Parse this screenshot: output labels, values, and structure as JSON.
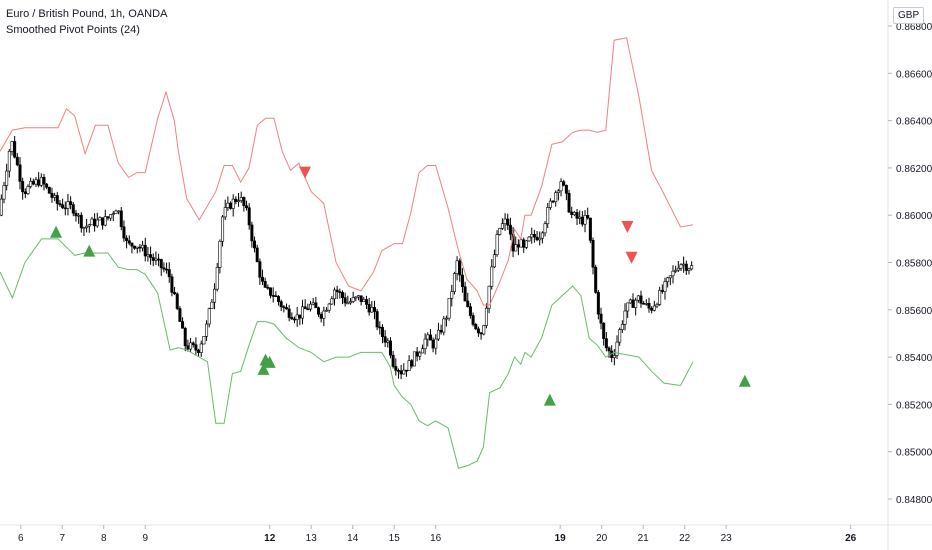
{
  "header": {
    "symbol_title": "Euro / British Pound, 1h, OANDA",
    "indicator_label": "Smoothed Pivot Points (24)",
    "currency_button": "GBP"
  },
  "colors": {
    "candle": "#000000",
    "upper_band": "#f08080",
    "lower_band": "#66bb6a",
    "arrow_down": "#ef5350",
    "arrow_up": "#43a047",
    "axis_text": "#131722",
    "axis_line": "#e0e3eb"
  },
  "chart_data": {
    "type": "line",
    "subtype": "candlestick with indicator bands and pivot markers",
    "x_axis": {
      "ticks": [
        "6",
        "7",
        "8",
        "9",
        "12",
        "13",
        "14",
        "15",
        "16",
        "19",
        "20",
        "21",
        "22",
        "23",
        "26"
      ],
      "bold_ticks": [
        "12",
        "19",
        "26"
      ],
      "range": [
        5.5,
        26.9
      ]
    },
    "y_axis": {
      "ticks": [
        "0.84800",
        "0.85000",
        "0.85200",
        "0.85400",
        "0.85600",
        "0.85800",
        "0.86000",
        "0.86200",
        "0.86400",
        "0.86600",
        "0.86800"
      ],
      "range": [
        0.8469,
        0.8691
      ],
      "position": "right"
    },
    "series": [
      {
        "key": "price",
        "points": [
          [
            5.5,
            0.86
          ],
          [
            5.8,
            0.8632
          ],
          [
            6.1,
            0.861
          ],
          [
            6.5,
            0.8615
          ],
          [
            6.9,
            0.8605
          ],
          [
            7.3,
            0.8603
          ],
          [
            7.55,
            0.8595
          ],
          [
            7.8,
            0.8597
          ],
          [
            8.1,
            0.8598
          ],
          [
            8.35,
            0.8604
          ],
          [
            8.6,
            0.8587
          ],
          [
            8.8,
            0.8588
          ],
          [
            9.0,
            0.8585
          ],
          [
            9.3,
            0.858
          ],
          [
            9.6,
            0.8575
          ],
          [
            9.8,
            0.856
          ],
          [
            10.0,
            0.8545
          ],
          [
            10.3,
            0.8543
          ],
          [
            10.5,
            0.8552
          ],
          [
            10.7,
            0.857
          ],
          [
            10.9,
            0.86
          ],
          [
            11.1,
            0.8605
          ],
          [
            11.3,
            0.8608
          ],
          [
            11.5,
            0.86
          ],
          [
            11.7,
            0.8582
          ],
          [
            11.9,
            0.8568
          ],
          [
            12.1,
            0.8567
          ],
          [
            12.4,
            0.856
          ],
          [
            12.7,
            0.8557
          ],
          [
            13.0,
            0.8562
          ],
          [
            13.3,
            0.8558
          ],
          [
            13.6,
            0.8569
          ],
          [
            13.9,
            0.8563
          ],
          [
            14.2,
            0.8565
          ],
          [
            14.5,
            0.856
          ],
          [
            14.7,
            0.855
          ],
          [
            14.9,
            0.8546
          ],
          [
            15.0,
            0.8538
          ],
          [
            15.2,
            0.8534
          ],
          [
            15.4,
            0.8537
          ],
          [
            15.6,
            0.8542
          ],
          [
            15.8,
            0.8548
          ],
          [
            16.0,
            0.8545
          ],
          [
            16.3,
            0.8558
          ],
          [
            16.55,
            0.858
          ],
          [
            16.75,
            0.8562
          ],
          [
            17.0,
            0.8553
          ],
          [
            17.15,
            0.855
          ],
          [
            17.3,
            0.8568
          ],
          [
            17.55,
            0.8594
          ],
          [
            17.75,
            0.8598
          ],
          [
            17.9,
            0.8585
          ],
          [
            18.05,
            0.8589
          ],
          [
            18.15,
            0.8585
          ],
          [
            18.3,
            0.859
          ],
          [
            18.55,
            0.8592
          ],
          [
            18.8,
            0.8605
          ],
          [
            19.05,
            0.8615
          ],
          [
            19.3,
            0.86
          ],
          [
            19.5,
            0.8598
          ],
          [
            19.7,
            0.8598
          ],
          [
            19.9,
            0.8565
          ],
          [
            20.1,
            0.8545
          ],
          [
            20.3,
            0.854
          ],
          [
            20.6,
            0.856
          ],
          [
            20.9,
            0.8565
          ],
          [
            21.2,
            0.856
          ],
          [
            21.5,
            0.8568
          ],
          [
            21.9,
            0.858
          ],
          [
            22.2,
            0.8578
          ]
        ]
      },
      {
        "key": "upper_band",
        "points": [
          [
            5.5,
            0.8627
          ],
          [
            5.8,
            0.8636
          ],
          [
            6.1,
            0.8637
          ],
          [
            6.5,
            0.8637
          ],
          [
            6.9,
            0.8637
          ],
          [
            7.1,
            0.8645
          ],
          [
            7.3,
            0.8642
          ],
          [
            7.55,
            0.8626
          ],
          [
            7.8,
            0.8638
          ],
          [
            8.1,
            0.8638
          ],
          [
            8.35,
            0.8622
          ],
          [
            8.6,
            0.8616
          ],
          [
            8.8,
            0.8618
          ],
          [
            9.0,
            0.8618
          ],
          [
            9.3,
            0.8641
          ],
          [
            9.5,
            0.8652
          ],
          [
            9.7,
            0.864
          ],
          [
            9.8,
            0.8627
          ],
          [
            10.0,
            0.8607
          ],
          [
            10.3,
            0.8598
          ],
          [
            10.7,
            0.861
          ],
          [
            10.9,
            0.8621
          ],
          [
            11.1,
            0.8621
          ],
          [
            11.3,
            0.8614
          ],
          [
            11.5,
            0.862
          ],
          [
            11.7,
            0.8638
          ],
          [
            11.9,
            0.8641
          ],
          [
            12.1,
            0.8641
          ],
          [
            12.3,
            0.8627
          ],
          [
            12.5,
            0.8619
          ],
          [
            12.7,
            0.8622
          ],
          [
            13.0,
            0.861
          ],
          [
            13.3,
            0.8605
          ],
          [
            13.6,
            0.858
          ],
          [
            13.9,
            0.857
          ],
          [
            14.2,
            0.8568
          ],
          [
            14.5,
            0.8576
          ],
          [
            14.7,
            0.8585
          ],
          [
            14.9,
            0.8587
          ],
          [
            15.0,
            0.8588
          ],
          [
            15.2,
            0.8588
          ],
          [
            15.4,
            0.8601
          ],
          [
            15.6,
            0.8618
          ],
          [
            15.8,
            0.8621
          ],
          [
            16.0,
            0.8621
          ],
          [
            16.3,
            0.8603
          ],
          [
            16.55,
            0.8585
          ],
          [
            16.75,
            0.8573
          ],
          [
            17.0,
            0.8568
          ],
          [
            17.15,
            0.8562
          ],
          [
            17.3,
            0.8562
          ],
          [
            17.55,
            0.8572
          ],
          [
            17.75,
            0.8581
          ],
          [
            17.9,
            0.8594
          ],
          [
            18.05,
            0.859
          ],
          [
            18.15,
            0.86
          ],
          [
            18.3,
            0.86
          ],
          [
            18.55,
            0.8612
          ],
          [
            18.8,
            0.863
          ],
          [
            19.05,
            0.8631
          ],
          [
            19.3,
            0.8635
          ],
          [
            19.5,
            0.8636
          ],
          [
            19.7,
            0.8636
          ],
          [
            19.9,
            0.8635
          ],
          [
            20.1,
            0.8636
          ],
          [
            20.3,
            0.8674
          ],
          [
            20.6,
            0.8675
          ],
          [
            20.9,
            0.865
          ],
          [
            21.2,
            0.8619
          ],
          [
            21.5,
            0.8609
          ],
          [
            21.9,
            0.8595
          ],
          [
            22.2,
            0.8596
          ]
        ]
      },
      {
        "key": "lower_band",
        "points": [
          [
            5.5,
            0.8576
          ],
          [
            5.8,
            0.8565
          ],
          [
            6.1,
            0.858
          ],
          [
            6.5,
            0.859
          ],
          [
            6.9,
            0.859
          ],
          [
            7.3,
            0.8583
          ],
          [
            7.55,
            0.8584
          ],
          [
            7.8,
            0.8584
          ],
          [
            8.1,
            0.8584
          ],
          [
            8.35,
            0.8578
          ],
          [
            8.6,
            0.8577
          ],
          [
            8.8,
            0.8577
          ],
          [
            9.0,
            0.8575
          ],
          [
            9.3,
            0.8567
          ],
          [
            9.6,
            0.8543
          ],
          [
            9.8,
            0.8544
          ],
          [
            10.0,
            0.8543
          ],
          [
            10.3,
            0.854
          ],
          [
            10.5,
            0.8538
          ],
          [
            10.7,
            0.8512
          ],
          [
            10.9,
            0.8512
          ],
          [
            11.1,
            0.8533
          ],
          [
            11.3,
            0.8534
          ],
          [
            11.5,
            0.8545
          ],
          [
            11.7,
            0.8555
          ],
          [
            11.9,
            0.8555
          ],
          [
            12.1,
            0.8554
          ],
          [
            12.4,
            0.8548
          ],
          [
            12.7,
            0.8544
          ],
          [
            13.0,
            0.8542
          ],
          [
            13.3,
            0.8538
          ],
          [
            13.6,
            0.854
          ],
          [
            13.9,
            0.854
          ],
          [
            14.2,
            0.8542
          ],
          [
            14.5,
            0.8542
          ],
          [
            14.7,
            0.8542
          ],
          [
            14.9,
            0.8536
          ],
          [
            15.0,
            0.8528
          ],
          [
            15.2,
            0.8523
          ],
          [
            15.4,
            0.852
          ],
          [
            15.6,
            0.8513
          ],
          [
            15.8,
            0.8511
          ],
          [
            16.0,
            0.8513
          ],
          [
            16.3,
            0.851
          ],
          [
            16.55,
            0.8493
          ],
          [
            16.75,
            0.8494
          ],
          [
            17.0,
            0.8496
          ],
          [
            17.15,
            0.8502
          ],
          [
            17.3,
            0.8525
          ],
          [
            17.55,
            0.8527
          ],
          [
            17.75,
            0.8533
          ],
          [
            17.9,
            0.854
          ],
          [
            18.05,
            0.8537
          ],
          [
            18.15,
            0.8542
          ],
          [
            18.3,
            0.854
          ],
          [
            18.55,
            0.8548
          ],
          [
            18.8,
            0.8562
          ],
          [
            19.05,
            0.8566
          ],
          [
            19.3,
            0.857
          ],
          [
            19.5,
            0.8566
          ],
          [
            19.7,
            0.8548
          ],
          [
            19.9,
            0.8545
          ],
          [
            20.1,
            0.854
          ],
          [
            20.3,
            0.8542
          ],
          [
            20.6,
            0.8541
          ],
          [
            20.9,
            0.854
          ],
          [
            21.2,
            0.8534
          ],
          [
            21.5,
            0.8529
          ],
          [
            21.9,
            0.8528
          ],
          [
            22.2,
            0.8538
          ]
        ]
      }
    ],
    "markers": [
      {
        "type": "pivot-low",
        "x": 6.85,
        "y": 0.8593
      },
      {
        "type": "pivot-low",
        "x": 7.65,
        "y": 0.8585
      },
      {
        "type": "pivot-low",
        "x": 11.9,
        "y": 0.8539
      },
      {
        "type": "pivot-low",
        "x": 11.85,
        "y": 0.8535
      },
      {
        "type": "pivot-low",
        "x": 12.0,
        "y": 0.8538
      },
      {
        "type": "pivot-high",
        "x": 12.85,
        "y": 0.8618
      },
      {
        "type": "pivot-low",
        "x": 18.75,
        "y": 0.8522
      },
      {
        "type": "pivot-high",
        "x": 20.62,
        "y": 0.8595
      },
      {
        "type": "pivot-high",
        "x": 20.72,
        "y": 0.8582
      },
      {
        "type": "pivot-low",
        "x": 23.45,
        "y": 0.853
      }
    ]
  }
}
